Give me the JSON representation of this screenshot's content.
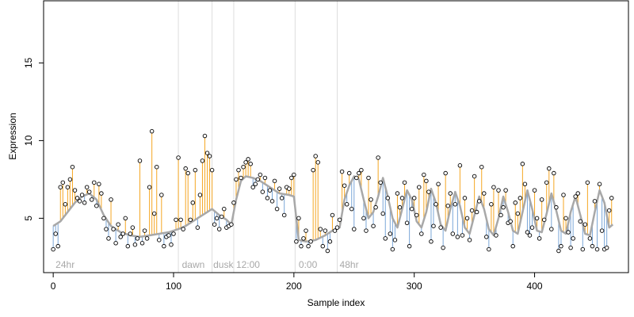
{
  "chart_data": {
    "type": "scatter",
    "xlabel": "Sample index",
    "ylabel": "Expression",
    "xlim": [
      -8,
      478
    ],
    "ylim": [
      1.5,
      19
    ],
    "x_ticks": [
      0,
      100,
      200,
      300,
      400
    ],
    "y_ticks": [
      5,
      10,
      15
    ],
    "phase_boundaries": [
      104,
      132,
      150,
      201,
      236
    ],
    "phase_labels": [
      {
        "x": 2,
        "label": "24hr"
      },
      {
        "x": 107,
        "label": "dawn"
      },
      {
        "x": 133,
        "label": "dusk"
      },
      {
        "x": 152,
        "label": "12:00"
      },
      {
        "x": 204,
        "label": "0:00"
      },
      {
        "x": 238,
        "label": "48hr"
      }
    ],
    "fitted_color": "#a8a8a8",
    "above_color": "#f5a623",
    "below_color": "#7aa6d8",
    "fitted": [
      [
        0,
        4.5
      ],
      [
        6,
        4.8
      ],
      [
        12,
        5.4
      ],
      [
        18,
        6.0
      ],
      [
        24,
        6.4
      ],
      [
        30,
        6.6
      ],
      [
        36,
        6.2
      ],
      [
        42,
        5.2
      ],
      [
        48,
        4.5
      ],
      [
        56,
        4.1
      ],
      [
        64,
        3.9
      ],
      [
        72,
        3.8
      ],
      [
        80,
        3.9
      ],
      [
        88,
        4.0
      ],
      [
        96,
        4.1
      ],
      [
        104,
        4.3
      ],
      [
        110,
        4.5
      ],
      [
        118,
        4.9
      ],
      [
        126,
        5.3
      ],
      [
        132,
        5.6
      ],
      [
        138,
        5.2
      ],
      [
        144,
        4.9
      ],
      [
        148,
        4.6
      ],
      [
        152,
        6.2
      ],
      [
        156,
        7.4
      ],
      [
        160,
        7.7
      ],
      [
        166,
        7.6
      ],
      [
        172,
        7.4
      ],
      [
        180,
        7.0
      ],
      [
        188,
        6.6
      ],
      [
        196,
        6.5
      ],
      [
        200,
        6.4
      ],
      [
        204,
        3.6
      ],
      [
        210,
        3.5
      ],
      [
        218,
        3.6
      ],
      [
        226,
        3.9
      ],
      [
        232,
        4.2
      ],
      [
        238,
        4.4
      ],
      [
        242,
        6.2
      ],
      [
        246,
        7.1
      ],
      [
        250,
        7.7
      ],
      [
        254,
        7.5
      ],
      [
        258,
        6.2
      ],
      [
        262,
        5.0
      ],
      [
        266,
        5.4
      ],
      [
        270,
        6.4
      ],
      [
        274,
        7.6
      ],
      [
        278,
        6.4
      ],
      [
        282,
        5.0
      ],
      [
        286,
        4.4
      ],
      [
        290,
        5.6
      ],
      [
        294,
        6.8
      ],
      [
        298,
        6.2
      ],
      [
        302,
        4.8
      ],
      [
        306,
        4.4
      ],
      [
        310,
        5.4
      ],
      [
        314,
        6.9
      ],
      [
        318,
        6.0
      ],
      [
        322,
        4.6
      ],
      [
        326,
        4.2
      ],
      [
        330,
        5.6
      ],
      [
        334,
        6.7
      ],
      [
        338,
        5.8
      ],
      [
        342,
        4.4
      ],
      [
        346,
        4.0
      ],
      [
        350,
        5.2
      ],
      [
        354,
        6.4
      ],
      [
        358,
        5.6
      ],
      [
        362,
        4.3
      ],
      [
        366,
        3.9
      ],
      [
        370,
        5.0
      ],
      [
        374,
        6.4
      ],
      [
        378,
        5.4
      ],
      [
        382,
        4.2
      ],
      [
        386,
        4.0
      ],
      [
        390,
        5.4
      ],
      [
        394,
        6.8
      ],
      [
        398,
        5.6
      ],
      [
        402,
        4.2
      ],
      [
        406,
        4.1
      ],
      [
        410,
        5.3
      ],
      [
        414,
        6.6
      ],
      [
        418,
        5.5
      ],
      [
        422,
        4.2
      ],
      [
        426,
        4.0
      ],
      [
        430,
        5.4
      ],
      [
        434,
        6.4
      ],
      [
        438,
        5.2
      ],
      [
        442,
        4.0
      ],
      [
        446,
        3.9
      ],
      [
        450,
        5.4
      ],
      [
        454,
        6.8
      ],
      [
        458,
        6.0
      ],
      [
        462,
        4.4
      ],
      [
        465,
        4.6
      ]
    ],
    "points": [
      [
        0,
        3.0
      ],
      [
        2,
        4.0
      ],
      [
        4,
        3.2
      ],
      [
        6,
        7.0
      ],
      [
        8,
        7.3
      ],
      [
        10,
        5.9
      ],
      [
        12,
        7.0
      ],
      [
        14,
        7.5
      ],
      [
        16,
        8.3
      ],
      [
        18,
        6.8
      ],
      [
        20,
        6.3
      ],
      [
        22,
        6.1
      ],
      [
        24,
        6.5
      ],
      [
        26,
        6.0
      ],
      [
        28,
        7.0
      ],
      [
        30,
        6.7
      ],
      [
        32,
        6.2
      ],
      [
        34,
        7.3
      ],
      [
        36,
        5.8
      ],
      [
        38,
        7.2
      ],
      [
        40,
        6.6
      ],
      [
        42,
        5.0
      ],
      [
        44,
        4.3
      ],
      [
        46,
        3.7
      ],
      [
        48,
        6.2
      ],
      [
        50,
        4.3
      ],
      [
        52,
        3.4
      ],
      [
        54,
        4.6
      ],
      [
        56,
        3.8
      ],
      [
        58,
        4.0
      ],
      [
        60,
        5.0
      ],
      [
        62,
        3.2
      ],
      [
        64,
        4.0
      ],
      [
        66,
        4.4
      ],
      [
        68,
        3.3
      ],
      [
        70,
        3.7
      ],
      [
        72,
        8.7
      ],
      [
        74,
        3.4
      ],
      [
        76,
        4.2
      ],
      [
        78,
        3.7
      ],
      [
        80,
        7.0
      ],
      [
        82,
        10.6
      ],
      [
        84,
        5.3
      ],
      [
        86,
        8.3
      ],
      [
        88,
        3.6
      ],
      [
        90,
        6.5
      ],
      [
        92,
        3.2
      ],
      [
        94,
        3.8
      ],
      [
        96,
        3.9
      ],
      [
        98,
        3.3
      ],
      [
        100,
        4.0
      ],
      [
        102,
        4.9
      ],
      [
        104,
        8.9
      ],
      [
        106,
        4.9
      ],
      [
        108,
        4.3
      ],
      [
        110,
        8.2
      ],
      [
        112,
        7.9
      ],
      [
        114,
        4.9
      ],
      [
        116,
        6.0
      ],
      [
        118,
        8.1
      ],
      [
        120,
        4.4
      ],
      [
        122,
        6.5
      ],
      [
        124,
        8.7
      ],
      [
        126,
        10.3
      ],
      [
        128,
        9.2
      ],
      [
        130,
        9.0
      ],
      [
        132,
        8.1
      ],
      [
        134,
        4.6
      ],
      [
        136,
        5.0
      ],
      [
        138,
        4.3
      ],
      [
        140,
        5.1
      ],
      [
        142,
        5.6
      ],
      [
        144,
        4.4
      ],
      [
        146,
        4.5
      ],
      [
        148,
        4.6
      ],
      [
        150,
        6.0
      ],
      [
        152,
        7.5
      ],
      [
        154,
        8.1
      ],
      [
        156,
        7.6
      ],
      [
        158,
        8.3
      ],
      [
        160,
        8.6
      ],
      [
        162,
        8.8
      ],
      [
        164,
        8.5
      ],
      [
        166,
        7.0
      ],
      [
        168,
        7.2
      ],
      [
        170,
        7.5
      ],
      [
        172,
        7.8
      ],
      [
        174,
        6.7
      ],
      [
        176,
        7.6
      ],
      [
        178,
        6.3
      ],
      [
        180,
        6.8
      ],
      [
        182,
        6.1
      ],
      [
        184,
        7.4
      ],
      [
        186,
        5.6
      ],
      [
        188,
        6.9
      ],
      [
        190,
        6.3
      ],
      [
        192,
        5.2
      ],
      [
        194,
        7.0
      ],
      [
        196,
        6.9
      ],
      [
        198,
        7.6
      ],
      [
        200,
        7.8
      ],
      [
        202,
        3.5
      ],
      [
        204,
        5.0
      ],
      [
        206,
        3.2
      ],
      [
        208,
        3.7
      ],
      [
        210,
        4.2
      ],
      [
        212,
        3.2
      ],
      [
        214,
        3.5
      ],
      [
        216,
        8.1
      ],
      [
        218,
        9.0
      ],
      [
        220,
        8.6
      ],
      [
        222,
        4.3
      ],
      [
        224,
        3.2
      ],
      [
        226,
        4.2
      ],
      [
        228,
        2.9
      ],
      [
        230,
        3.5
      ],
      [
        232,
        5.2
      ],
      [
        234,
        4.2
      ],
      [
        236,
        4.4
      ],
      [
        238,
        4.9
      ],
      [
        240,
        8.0
      ],
      [
        242,
        7.1
      ],
      [
        244,
        5.9
      ],
      [
        246,
        7.9
      ],
      [
        248,
        5.6
      ],
      [
        250,
        4.3
      ],
      [
        252,
        7.6
      ],
      [
        254,
        7.9
      ],
      [
        256,
        8.1
      ],
      [
        258,
        5.0
      ],
      [
        260,
        4.2
      ],
      [
        262,
        7.6
      ],
      [
        264,
        6.2
      ],
      [
        266,
        4.5
      ],
      [
        268,
        5.7
      ],
      [
        270,
        8.9
      ],
      [
        272,
        7.3
      ],
      [
        274,
        5.3
      ],
      [
        276,
        3.7
      ],
      [
        278,
        6.3
      ],
      [
        280,
        4.0
      ],
      [
        282,
        3.0
      ],
      [
        284,
        3.6
      ],
      [
        286,
        6.6
      ],
      [
        288,
        5.7
      ],
      [
        290,
        6.3
      ],
      [
        292,
        7.3
      ],
      [
        294,
        4.7
      ],
      [
        296,
        3.2
      ],
      [
        298,
        5.6
      ],
      [
        300,
        6.3
      ],
      [
        302,
        5.2
      ],
      [
        304,
        7.0
      ],
      [
        306,
        4.0
      ],
      [
        308,
        7.8
      ],
      [
        310,
        7.4
      ],
      [
        312,
        6.7
      ],
      [
        314,
        3.5
      ],
      [
        316,
        4.5
      ],
      [
        318,
        5.9
      ],
      [
        320,
        7.2
      ],
      [
        322,
        4.4
      ],
      [
        324,
        3.1
      ],
      [
        326,
        7.9
      ],
      [
        328,
        5.8
      ],
      [
        330,
        6.6
      ],
      [
        332,
        4.0
      ],
      [
        334,
        5.9
      ],
      [
        336,
        3.8
      ],
      [
        338,
        8.4
      ],
      [
        340,
        3.9
      ],
      [
        342,
        6.3
      ],
      [
        344,
        5.0
      ],
      [
        346,
        3.6
      ],
      [
        348,
        5.5
      ],
      [
        350,
        7.7
      ],
      [
        352,
        5.4
      ],
      [
        354,
        6.1
      ],
      [
        356,
        8.3
      ],
      [
        358,
        6.6
      ],
      [
        360,
        3.8
      ],
      [
        362,
        3.0
      ],
      [
        364,
        5.9
      ],
      [
        366,
        7.0
      ],
      [
        368,
        3.9
      ],
      [
        370,
        6.8
      ],
      [
        372,
        5.2
      ],
      [
        374,
        5.7
      ],
      [
        376,
        6.8
      ],
      [
        378,
        4.7
      ],
      [
        380,
        4.8
      ],
      [
        382,
        3.2
      ],
      [
        384,
        6.0
      ],
      [
        386,
        5.3
      ],
      [
        388,
        6.3
      ],
      [
        390,
        8.5
      ],
      [
        392,
        7.2
      ],
      [
        394,
        4.1
      ],
      [
        396,
        3.9
      ],
      [
        398,
        4.4
      ],
      [
        400,
        6.8
      ],
      [
        402,
        5.0
      ],
      [
        404,
        3.7
      ],
      [
        406,
        6.2
      ],
      [
        408,
        4.9
      ],
      [
        410,
        7.3
      ],
      [
        412,
        8.2
      ],
      [
        414,
        4.3
      ],
      [
        416,
        7.9
      ],
      [
        418,
        5.7
      ],
      [
        420,
        2.9
      ],
      [
        422,
        3.2
      ],
      [
        424,
        6.5
      ],
      [
        426,
        5.0
      ],
      [
        428,
        4.1
      ],
      [
        430,
        3.1
      ],
      [
        432,
        3.7
      ],
      [
        434,
        6.4
      ],
      [
        436,
        6.6
      ],
      [
        438,
        4.8
      ],
      [
        440,
        3.0
      ],
      [
        442,
        4.6
      ],
      [
        444,
        7.3
      ],
      [
        446,
        3.7
      ],
      [
        448,
        3.2
      ],
      [
        450,
        6.1
      ],
      [
        452,
        3.0
      ],
      [
        454,
        7.2
      ],
      [
        456,
        4.2
      ],
      [
        458,
        3.0
      ],
      [
        460,
        3.1
      ],
      [
        462,
        5.5
      ],
      [
        464,
        6.3
      ]
    ]
  }
}
